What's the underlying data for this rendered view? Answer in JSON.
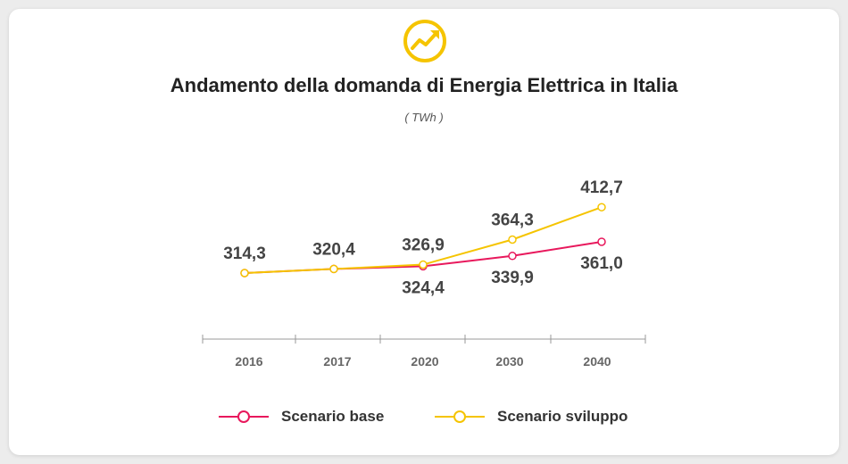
{
  "header": {
    "icon": "trend-up-icon",
    "title": "Andamento della domanda di Energia Elettrica in Italia",
    "subtitle": "( TWh )"
  },
  "colors": {
    "base": "#e8185c",
    "sviluppo": "#f5c400",
    "text": "#444444",
    "axis": "#999999"
  },
  "chart_data": {
    "type": "line",
    "title": "Andamento della domanda di Energia Elettrica in Italia",
    "subtitle": "( TWh )",
    "categories": [
      "2016",
      "2017",
      "2020",
      "2030",
      "2040"
    ],
    "series": [
      {
        "name": "Scenario base",
        "values": [
          314.3,
          320.4,
          324.4,
          339.9,
          361.0
        ],
        "labels": [
          "",
          "",
          "324,4",
          "339,9",
          "361,0"
        ]
      },
      {
        "name": "Scenario sviluppo",
        "values": [
          314.3,
          320.4,
          326.9,
          364.3,
          412.7
        ],
        "labels": [
          "314,3",
          "320,4",
          "326,9",
          "364,3",
          "412,7"
        ]
      }
    ],
    "legend_position": "bottom",
    "grid": false
  },
  "legend": {
    "base_label": "Scenario base",
    "sviluppo_label": "Scenario sviluppo"
  }
}
